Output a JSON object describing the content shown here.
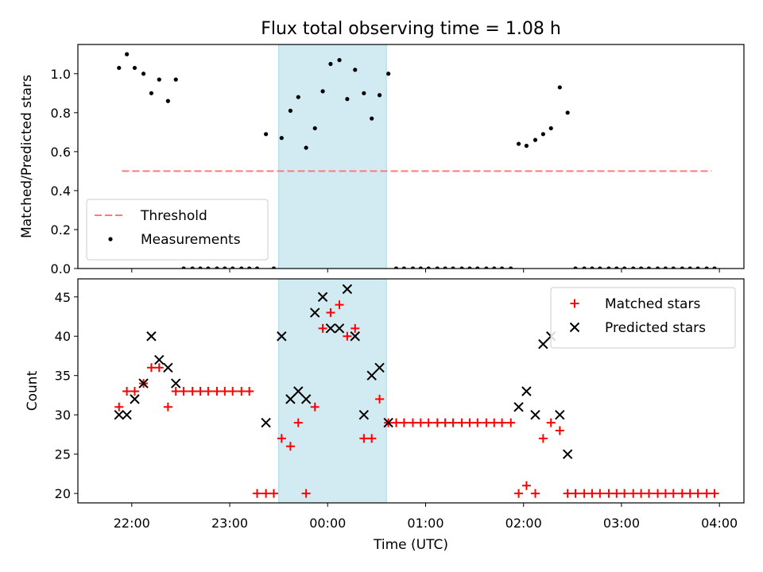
{
  "chart_data": {
    "type": "scatter",
    "title": "Flux total observing time = 1.08 h",
    "xlabel": "Time (UTC)",
    "x_unit": "hours",
    "x_ticks": [
      {
        "value": 22,
        "label": "22:00"
      },
      {
        "value": 23,
        "label": "23:00"
      },
      {
        "value": 24,
        "label": "00:00"
      },
      {
        "value": 25,
        "label": "01:00"
      },
      {
        "value": 26,
        "label": "02:00"
      },
      {
        "value": 27,
        "label": "03:00"
      },
      {
        "value": 28,
        "label": "04:00"
      }
    ],
    "xlim": [
      21.45,
      28.25
    ],
    "shaded_interval": {
      "start": 23.5,
      "end": 24.6,
      "color": "#add8e6"
    },
    "panels": [
      {
        "ylabel": "Matched/Predicted stars",
        "ylim": [
          0,
          1.15
        ],
        "yticks": [
          {
            "value": 0,
            "label": "0.0"
          },
          {
            "value": 0.2,
            "label": "0.2"
          },
          {
            "value": 0.4,
            "label": "0.4"
          },
          {
            "value": 0.6,
            "label": "0.6"
          },
          {
            "value": 0.8,
            "label": "0.8"
          },
          {
            "value": 1.0,
            "label": "1.0"
          }
        ],
        "legend_position": "lower-left",
        "series": [
          {
            "name": "Threshold",
            "kind": "dashed-line",
            "color": "#ff7b7b",
            "x": [
              21.9,
              27.92
            ],
            "y": [
              0.5,
              0.5
            ]
          },
          {
            "name": "Measurements",
            "kind": "dot",
            "color": "#000000",
            "x": [
              21.87,
              21.95,
              22.03,
              22.12,
              22.2,
              22.28,
              22.37,
              22.45,
              22.53,
              22.62,
              22.7,
              22.78,
              22.87,
              22.95,
              23.03,
              23.12,
              23.2,
              23.28,
              23.37,
              23.45,
              23.53,
              23.62,
              23.7,
              23.78,
              23.87,
              23.95,
              24.03,
              24.12,
              24.2,
              24.28,
              24.37,
              24.45,
              24.53,
              24.62,
              24.7,
              24.78,
              24.87,
              24.95,
              25.03,
              25.12,
              25.2,
              25.28,
              25.37,
              25.45,
              25.53,
              25.62,
              25.7,
              25.78,
              25.87,
              25.95,
              26.03,
              26.12,
              26.2,
              26.28,
              26.37,
              26.45,
              26.53,
              26.62,
              26.7,
              26.78,
              26.87,
              26.95,
              27.03,
              27.12,
              27.2,
              27.28,
              27.37,
              27.45,
              27.53,
              27.62,
              27.7,
              27.78,
              27.87,
              27.95
            ],
            "y": [
              1.03,
              1.1,
              1.03,
              1.0,
              0.9,
              0.97,
              0.86,
              0.97,
              0,
              0,
              0,
              0,
              0,
              0,
              0,
              0,
              0,
              0,
              0.69,
              0,
              0.67,
              0.81,
              0.88,
              0.62,
              0.72,
              0.91,
              1.05,
              1.07,
              0.87,
              1.02,
              0.9,
              0.77,
              0.89,
              1.0,
              0,
              0,
              0,
              0,
              0,
              0,
              0,
              0,
              0,
              0,
              0,
              0,
              0,
              0,
              0,
              0.64,
              0.63,
              0.66,
              0.69,
              0.72,
              0.93,
              0.8,
              0,
              0,
              0,
              0,
              0,
              0,
              0,
              0,
              0,
              0,
              0,
              0,
              0,
              0,
              0,
              0,
              0,
              0
            ]
          }
        ]
      },
      {
        "ylabel": "Count",
        "ylim": [
          18.8,
          47.3
        ],
        "yticks": [
          {
            "value": 20,
            "label": "20"
          },
          {
            "value": 25,
            "label": "25"
          },
          {
            "value": 30,
            "label": "30"
          },
          {
            "value": 35,
            "label": "35"
          },
          {
            "value": 40,
            "label": "40"
          },
          {
            "value": 45,
            "label": "45"
          }
        ],
        "legend_position": "upper-right",
        "series": [
          {
            "name": "Matched stars",
            "kind": "plus",
            "color": "#ff0000",
            "x": [
              21.87,
              21.95,
              22.03,
              22.12,
              22.2,
              22.28,
              22.37,
              22.45,
              22.53,
              22.62,
              22.7,
              22.78,
              22.87,
              22.95,
              23.03,
              23.12,
              23.2,
              23.28,
              23.37,
              23.45,
              23.53,
              23.62,
              23.7,
              23.78,
              23.87,
              23.95,
              24.03,
              24.12,
              24.2,
              24.28,
              24.37,
              24.45,
              24.53,
              24.62,
              24.7,
              24.78,
              24.87,
              24.95,
              25.03,
              25.12,
              25.2,
              25.28,
              25.37,
              25.45,
              25.53,
              25.62,
              25.7,
              25.78,
              25.87,
              25.95,
              26.03,
              26.12,
              26.2,
              26.28,
              26.37,
              26.45,
              26.53,
              26.62,
              26.7,
              26.78,
              26.87,
              26.95,
              27.03,
              27.12,
              27.2,
              27.28,
              27.37,
              27.45,
              27.53,
              27.62,
              27.7,
              27.78,
              27.87,
              27.95
            ],
            "y": [
              31,
              33,
              33,
              34,
              36,
              36,
              31,
              33,
              33,
              33,
              33,
              33,
              33,
              33,
              33,
              33,
              33,
              20,
              20,
              20,
              27,
              26,
              29,
              20,
              31,
              41,
              43,
              44,
              40,
              41,
              27,
              27,
              32,
              29,
              29,
              29,
              29,
              29,
              29,
              29,
              29,
              29,
              29,
              29,
              29,
              29,
              29,
              29,
              29,
              20,
              21,
              20,
              27,
              29,
              28,
              20,
              20,
              20,
              20,
              20,
              20,
              20,
              20,
              20,
              20,
              20,
              20,
              20,
              20,
              20,
              20,
              20,
              20,
              20
            ]
          },
          {
            "name": "Predicted stars",
            "kind": "cross",
            "color": "#000000",
            "x": [
              21.87,
              21.95,
              22.03,
              22.12,
              22.2,
              22.28,
              22.37,
              22.45,
              23.37,
              23.53,
              23.62,
              23.7,
              23.78,
              23.87,
              23.95,
              24.03,
              24.12,
              24.2,
              24.28,
              24.37,
              24.45,
              24.53,
              24.62,
              25.95,
              26.03,
              26.12,
              26.2,
              26.28,
              26.37,
              26.45
            ],
            "y": [
              30,
              30,
              32,
              34,
              40,
              37,
              36,
              34,
              29,
              40,
              32,
              33,
              32,
              43,
              45,
              41,
              41,
              46,
              40,
              30,
              35,
              36,
              29,
              31,
              33,
              30,
              39,
              40,
              30,
              25
            ]
          }
        ]
      }
    ]
  }
}
